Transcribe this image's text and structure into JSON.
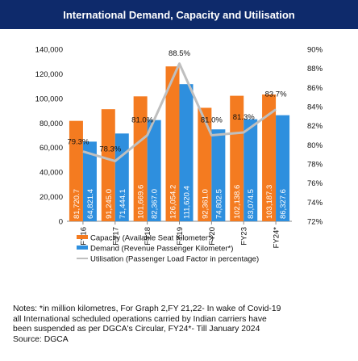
{
  "chart_data": {
    "type": "bar",
    "title": "International Demand, Capacity and Utilisation",
    "categories": [
      "FY16",
      "FY17",
      "FY18",
      "FY19",
      "FY20",
      "FY23",
      "FY24*"
    ],
    "series": [
      {
        "name": "Capacity (Available Seat Kilometer*)",
        "type": "bar",
        "axis": "left",
        "color": "#f47b20",
        "values": [
          81720.7,
          91245.0,
          101669.6,
          126054.2,
          92361.0,
          102138.6,
          103187.3
        ],
        "labels": [
          "81,720.7",
          "91,245.0",
          "101,669.6",
          "126,054.2",
          "92,361.0",
          "102,138.6",
          "103,187.3"
        ]
      },
      {
        "name": "Demand (Revenue Passenger Kilometer*)",
        "type": "bar",
        "axis": "left",
        "color": "#2e8fde",
        "values": [
          64821.4,
          71444.1,
          82367.0,
          111620.4,
          74802.5,
          83074.5,
          86327.6
        ],
        "labels": [
          "64,821.4",
          "71,444.1",
          "82,367.0",
          "111,620.4",
          "74,802.5",
          "83,074.5",
          "86,327.6"
        ]
      },
      {
        "name": "Utilisation (Passenger Load Factor in percentage)",
        "type": "line",
        "axis": "right",
        "color": "#bfbfbf",
        "values": [
          79.3,
          78.3,
          81.0,
          88.5,
          81.0,
          81.3,
          83.7
        ],
        "labels": [
          "79.3%",
          "78.3%",
          "81.0%",
          "88.5%",
          "81.0%",
          "81.3%",
          "83.7%"
        ]
      }
    ],
    "y_left": {
      "ylim": [
        0,
        140000
      ],
      "ticks": [
        0,
        20000,
        40000,
        60000,
        80000,
        100000,
        120000,
        140000
      ],
      "tick_labels": [
        "0",
        "20,000",
        "40,000",
        "60,000",
        "80,000",
        "100,000",
        "120,000",
        "140,000"
      ]
    },
    "y_right": {
      "ylim": [
        72,
        90
      ],
      "ticks": [
        72,
        74,
        76,
        78,
        80,
        82,
        84,
        86,
        88,
        90
      ],
      "tick_labels": [
        "72%",
        "74%",
        "76%",
        "78%",
        "80%",
        "82%",
        "84%",
        "86%",
        "88%",
        "90%"
      ]
    },
    "grid": false,
    "legend_position": "bottom",
    "notes": [
      "Notes: *in million kilometres, For Graph 2,FY 21,22- In wake of Covid-19",
      "all International scheduled operations carried by Indian carriers have",
      "been suspended as per DGCA's Circular, FY24*- Till January 2024",
      "Source: DGCA"
    ]
  }
}
